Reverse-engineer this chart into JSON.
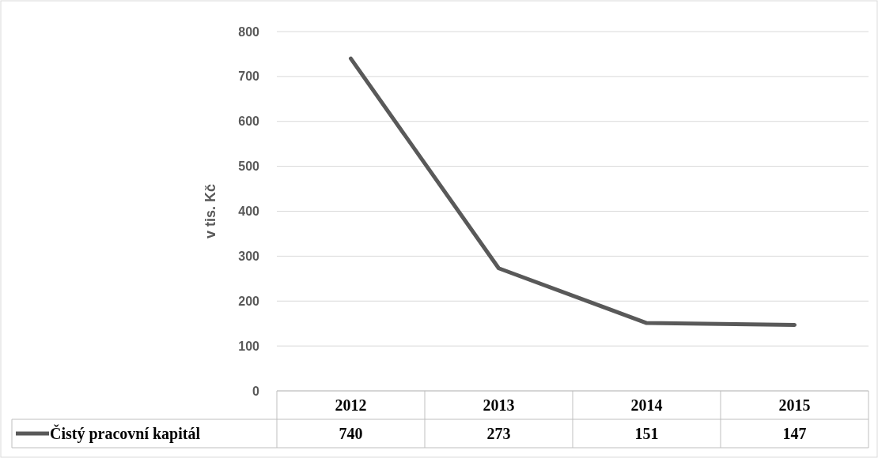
{
  "chart_data": {
    "type": "line",
    "ylabel": "v tis. Kč",
    "categories": [
      "2012",
      "2013",
      "2014",
      "2015"
    ],
    "series": [
      {
        "name": "Čistý pracovní kapitál",
        "color": "#595959",
        "values": [
          740,
          273,
          151,
          147
        ]
      }
    ],
    "ylim": [
      0,
      800
    ],
    "yticks": [
      0,
      100,
      200,
      300,
      400,
      500,
      600,
      700,
      800
    ],
    "grid": "y",
    "data_labels": true,
    "legend": "bottom",
    "marker": "none"
  }
}
